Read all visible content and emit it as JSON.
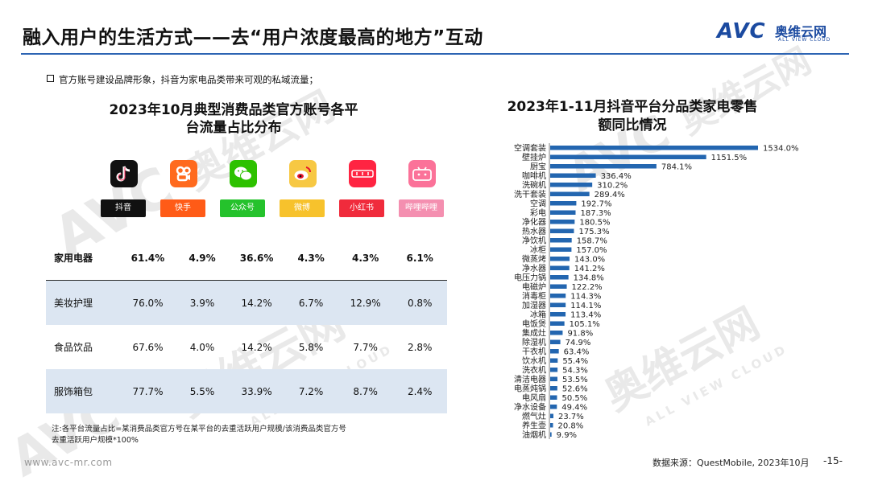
{
  "page": {
    "title": "融入用户的生活方式——去“用户浓度最高的地方”互动",
    "bullet": "官方账号建设品牌形象，抖音为家电品类带来可观的私域流量；",
    "left_title_line1": "2023年10月典型消费品类官方账号各平",
    "left_title_line2": "台流量占比分布",
    "note_line1": "注:各平台流量占比=某消费品类官方号在某平台的去重活跃用户规模/该消费品类官方号",
    "note_line2": "去重活跃用户规模*100%",
    "footer_url": "www.avc-mr.com",
    "source": "数据来源：QuestMobile, 2023年10月",
    "page_number": "-15-"
  },
  "logo": {
    "mark": "AVC",
    "cn": "奥维云网",
    "en": "ALL VIEW CLOUD"
  },
  "watermark": {
    "mark": "AVC",
    "cn": "奥维云网",
    "en": "ALL VIEW CLOUD"
  },
  "platforms": [
    {
      "label": "抖音",
      "icon": "douyin-icon",
      "badge_color": "#111111",
      "icon_color": "#111111"
    },
    {
      "label": "快手",
      "icon": "kuaishou-icon",
      "badge_color": "#ff5b17",
      "icon_color": "#ff6a1e"
    },
    {
      "label": "公众号",
      "icon": "wechat-icon",
      "badge_color": "#25c22c",
      "icon_color": "#2dc100"
    },
    {
      "label": "微博",
      "icon": "weibo-icon",
      "badge_color": "#f7c22c",
      "icon_color": "#f7c843"
    },
    {
      "label": "小红书",
      "icon": "xiaohongshu-icon",
      "badge_color": "#f02b3c",
      "icon_color": "#ff2442"
    },
    {
      "label": "哔哩哔哩",
      "icon": "bilibili-icon",
      "badge_color": "#f48fb0",
      "icon_color": "#fb7299"
    }
  ],
  "table": {
    "rows": [
      {
        "category": "家用电器",
        "values": [
          "61.4%",
          "4.9%",
          "36.6%",
          "4.3%",
          "4.3%",
          "6.1%"
        ]
      },
      {
        "category": "美妆护理",
        "values": [
          "76.0%",
          "3.9%",
          "14.2%",
          "6.7%",
          "12.9%",
          "0.8%"
        ]
      },
      {
        "category": "食品饮品",
        "values": [
          "67.6%",
          "4.0%",
          "14.2%",
          "5.8%",
          "7.7%",
          "2.8%"
        ]
      },
      {
        "category": "服饰箱包",
        "values": [
          "77.7%",
          "5.5%",
          "33.9%",
          "7.2%",
          "8.7%",
          "2.4%"
        ]
      }
    ]
  },
  "chart_data": {
    "type": "bar",
    "orientation": "horizontal",
    "title": "2023年1-11月抖音平台分品类家电零售额同比情况",
    "title_line1": "2023年1-11月抖音平台分品类家电零售",
    "title_line2": "额同比情况",
    "bar_color": "#2366b0",
    "categories": [
      "空调套装",
      "壁挂炉",
      "厨宝",
      "咖啡机",
      "洗碗机",
      "洗干套装",
      "空调",
      "彩电",
      "净化器",
      "热水器",
      "净饮机",
      "冰柜",
      "微蒸烤",
      "净水器",
      "电压力锅",
      "电磁炉",
      "消毒柜",
      "加湿器",
      "冰箱",
      "电饭煲",
      "集成灶",
      "除湿机",
      "干衣机",
      "饮水机",
      "洗衣机",
      "清洁电器",
      "电蒸炖锅",
      "电风扇",
      "净水设备",
      "燃气灶",
      "养生壶",
      "油烟机"
    ],
    "values": [
      1534.0,
      1151.5,
      784.1,
      336.4,
      310.2,
      289.4,
      192.7,
      187.3,
      180.5,
      175.3,
      158.7,
      157.0,
      143.0,
      141.2,
      134.8,
      122.2,
      114.3,
      114.1,
      113.4,
      105.1,
      91.8,
      74.9,
      63.4,
      55.4,
      54.3,
      53.5,
      52.6,
      50.5,
      49.4,
      23.7,
      20.8,
      9.9
    ],
    "labels": [
      "1534.0%",
      "1151.5%",
      "784.1%",
      "336.4%",
      "310.2%",
      "289.4%",
      "192.7%",
      "187.3%",
      "180.5%",
      "175.3%",
      "158.7%",
      "157.0%",
      "143.0%",
      "141.2%",
      "134.8%",
      "122.2%",
      "114.3%",
      "114.1%",
      "113.4%",
      "105.1%",
      "91.8%",
      "74.9%",
      "63.4%",
      "55.4%",
      "54.3%",
      "53.5%",
      "52.6%",
      "50.5%",
      "49.4%",
      "23.7%",
      "20.8%",
      "9.9%"
    ],
    "value_unit": "%",
    "grid": false,
    "legend": "none"
  }
}
